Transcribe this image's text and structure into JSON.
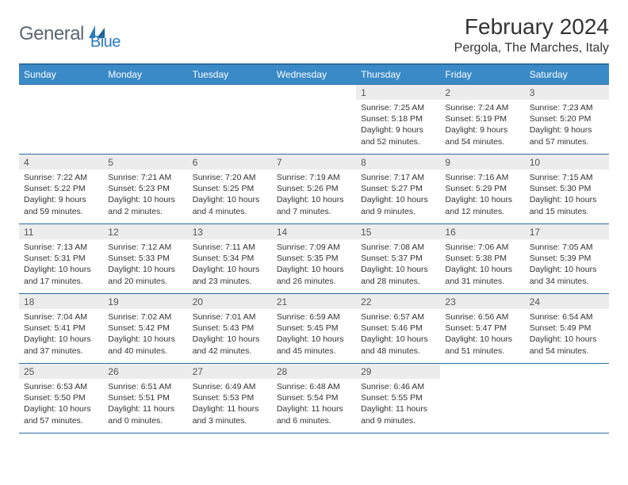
{
  "colors": {
    "header_bg": "#3a8ac7",
    "header_border": "#2b6ca0",
    "daynum_bg": "#ececec",
    "text": "#333333",
    "logo_gray": "#5b6770",
    "logo_blue": "#2b7bbf",
    "page_bg": "#ffffff"
  },
  "typography": {
    "title_fontsize_pt": 21,
    "location_fontsize_pt": 12,
    "header_fontsize_pt": 9,
    "cell_fontsize_pt": 8
  },
  "logo": {
    "text1": "General",
    "text2": "Blue"
  },
  "title": "February 2024",
  "location": "Pergola, The Marches, Italy",
  "weekdays": [
    "Sunday",
    "Monday",
    "Tuesday",
    "Wednesday",
    "Thursday",
    "Friday",
    "Saturday"
  ],
  "weeks": [
    [
      {
        "empty": true
      },
      {
        "empty": true
      },
      {
        "empty": true
      },
      {
        "empty": true
      },
      {
        "day": "1",
        "sunrise": "Sunrise: 7:25 AM",
        "sunset": "Sunset: 5:18 PM",
        "daylight": "Daylight: 9 hours and 52 minutes."
      },
      {
        "day": "2",
        "sunrise": "Sunrise: 7:24 AM",
        "sunset": "Sunset: 5:19 PM",
        "daylight": "Daylight: 9 hours and 54 minutes."
      },
      {
        "day": "3",
        "sunrise": "Sunrise: 7:23 AM",
        "sunset": "Sunset: 5:20 PM",
        "daylight": "Daylight: 9 hours and 57 minutes."
      }
    ],
    [
      {
        "day": "4",
        "sunrise": "Sunrise: 7:22 AM",
        "sunset": "Sunset: 5:22 PM",
        "daylight": "Daylight: 9 hours and 59 minutes."
      },
      {
        "day": "5",
        "sunrise": "Sunrise: 7:21 AM",
        "sunset": "Sunset: 5:23 PM",
        "daylight": "Daylight: 10 hours and 2 minutes."
      },
      {
        "day": "6",
        "sunrise": "Sunrise: 7:20 AM",
        "sunset": "Sunset: 5:25 PM",
        "daylight": "Daylight: 10 hours and 4 minutes."
      },
      {
        "day": "7",
        "sunrise": "Sunrise: 7:19 AM",
        "sunset": "Sunset: 5:26 PM",
        "daylight": "Daylight: 10 hours and 7 minutes."
      },
      {
        "day": "8",
        "sunrise": "Sunrise: 7:17 AM",
        "sunset": "Sunset: 5:27 PM",
        "daylight": "Daylight: 10 hours and 9 minutes."
      },
      {
        "day": "9",
        "sunrise": "Sunrise: 7:16 AM",
        "sunset": "Sunset: 5:29 PM",
        "daylight": "Daylight: 10 hours and 12 minutes."
      },
      {
        "day": "10",
        "sunrise": "Sunrise: 7:15 AM",
        "sunset": "Sunset: 5:30 PM",
        "daylight": "Daylight: 10 hours and 15 minutes."
      }
    ],
    [
      {
        "day": "11",
        "sunrise": "Sunrise: 7:13 AM",
        "sunset": "Sunset: 5:31 PM",
        "daylight": "Daylight: 10 hours and 17 minutes."
      },
      {
        "day": "12",
        "sunrise": "Sunrise: 7:12 AM",
        "sunset": "Sunset: 5:33 PM",
        "daylight": "Daylight: 10 hours and 20 minutes."
      },
      {
        "day": "13",
        "sunrise": "Sunrise: 7:11 AM",
        "sunset": "Sunset: 5:34 PM",
        "daylight": "Daylight: 10 hours and 23 minutes."
      },
      {
        "day": "14",
        "sunrise": "Sunrise: 7:09 AM",
        "sunset": "Sunset: 5:35 PM",
        "daylight": "Daylight: 10 hours and 26 minutes."
      },
      {
        "day": "15",
        "sunrise": "Sunrise: 7:08 AM",
        "sunset": "Sunset: 5:37 PM",
        "daylight": "Daylight: 10 hours and 28 minutes."
      },
      {
        "day": "16",
        "sunrise": "Sunrise: 7:06 AM",
        "sunset": "Sunset: 5:38 PM",
        "daylight": "Daylight: 10 hours and 31 minutes."
      },
      {
        "day": "17",
        "sunrise": "Sunrise: 7:05 AM",
        "sunset": "Sunset: 5:39 PM",
        "daylight": "Daylight: 10 hours and 34 minutes."
      }
    ],
    [
      {
        "day": "18",
        "sunrise": "Sunrise: 7:04 AM",
        "sunset": "Sunset: 5:41 PM",
        "daylight": "Daylight: 10 hours and 37 minutes."
      },
      {
        "day": "19",
        "sunrise": "Sunrise: 7:02 AM",
        "sunset": "Sunset: 5:42 PM",
        "daylight": "Daylight: 10 hours and 40 minutes."
      },
      {
        "day": "20",
        "sunrise": "Sunrise: 7:01 AM",
        "sunset": "Sunset: 5:43 PM",
        "daylight": "Daylight: 10 hours and 42 minutes."
      },
      {
        "day": "21",
        "sunrise": "Sunrise: 6:59 AM",
        "sunset": "Sunset: 5:45 PM",
        "daylight": "Daylight: 10 hours and 45 minutes."
      },
      {
        "day": "22",
        "sunrise": "Sunrise: 6:57 AM",
        "sunset": "Sunset: 5:46 PM",
        "daylight": "Daylight: 10 hours and 48 minutes."
      },
      {
        "day": "23",
        "sunrise": "Sunrise: 6:56 AM",
        "sunset": "Sunset: 5:47 PM",
        "daylight": "Daylight: 10 hours and 51 minutes."
      },
      {
        "day": "24",
        "sunrise": "Sunrise: 6:54 AM",
        "sunset": "Sunset: 5:49 PM",
        "daylight": "Daylight: 10 hours and 54 minutes."
      }
    ],
    [
      {
        "day": "25",
        "sunrise": "Sunrise: 6:53 AM",
        "sunset": "Sunset: 5:50 PM",
        "daylight": "Daylight: 10 hours and 57 minutes."
      },
      {
        "day": "26",
        "sunrise": "Sunrise: 6:51 AM",
        "sunset": "Sunset: 5:51 PM",
        "daylight": "Daylight: 11 hours and 0 minutes."
      },
      {
        "day": "27",
        "sunrise": "Sunrise: 6:49 AM",
        "sunset": "Sunset: 5:53 PM",
        "daylight": "Daylight: 11 hours and 3 minutes."
      },
      {
        "day": "28",
        "sunrise": "Sunrise: 6:48 AM",
        "sunset": "Sunset: 5:54 PM",
        "daylight": "Daylight: 11 hours and 6 minutes."
      },
      {
        "day": "29",
        "sunrise": "Sunrise: 6:46 AM",
        "sunset": "Sunset: 5:55 PM",
        "daylight": "Daylight: 11 hours and 9 minutes."
      },
      {
        "empty": true
      },
      {
        "empty": true
      }
    ]
  ]
}
